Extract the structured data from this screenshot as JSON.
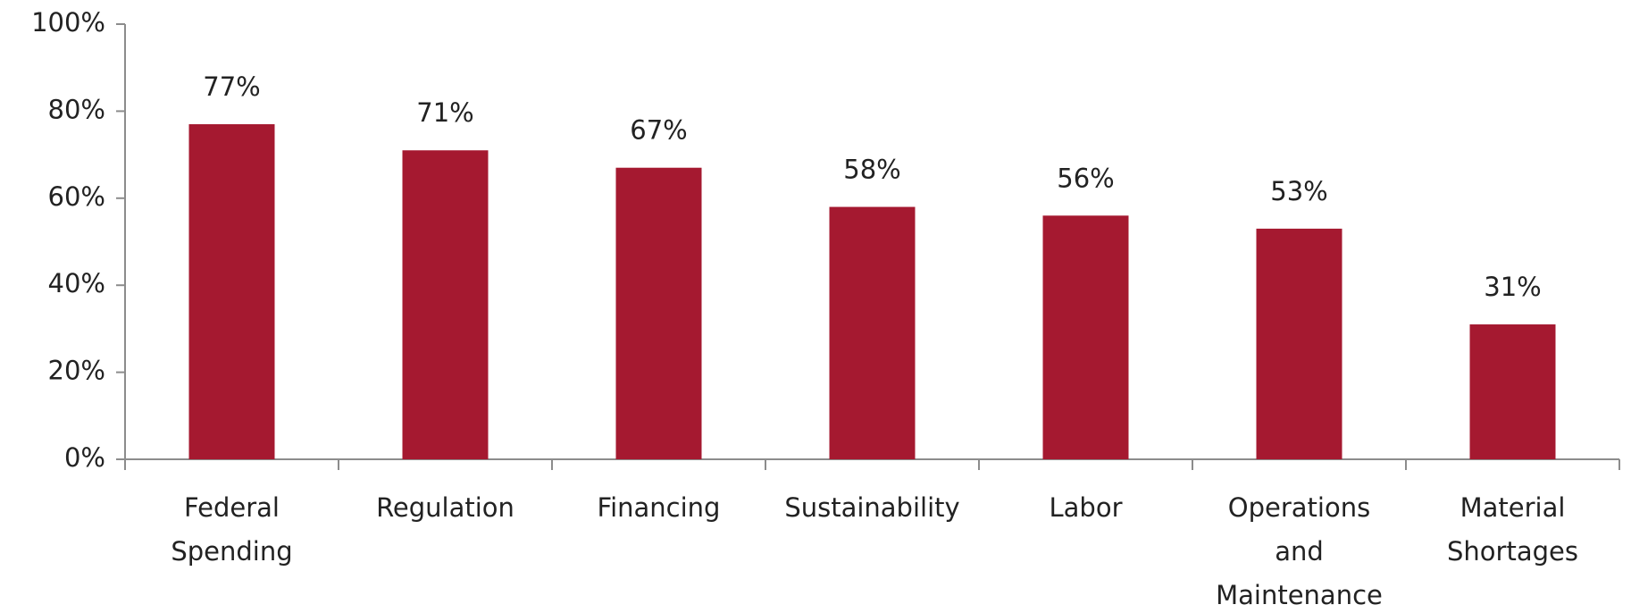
{
  "chart_data": {
    "type": "bar",
    "categories": [
      "Federal Spending",
      "Regulation",
      "Financing",
      "Sustainability",
      "Labor",
      "Operations and Maintenance",
      "Material Shortages"
    ],
    "values": [
      77,
      71,
      67,
      58,
      56,
      53,
      31
    ],
    "value_labels": [
      "77%",
      "71%",
      "67%",
      "58%",
      "56%",
      "53%",
      "31%"
    ],
    "color": "#a51930",
    "ylim": [
      0,
      100
    ],
    "yticks": [
      {
        "value": 0,
        "label": "0%"
      },
      {
        "value": 20,
        "label": "20%"
      },
      {
        "value": 40,
        "label": "40%"
      },
      {
        "value": 60,
        "label": "60%"
      },
      {
        "value": 80,
        "label": "80%"
      },
      {
        "value": 100,
        "label": "100%"
      }
    ],
    "grid": false
  }
}
